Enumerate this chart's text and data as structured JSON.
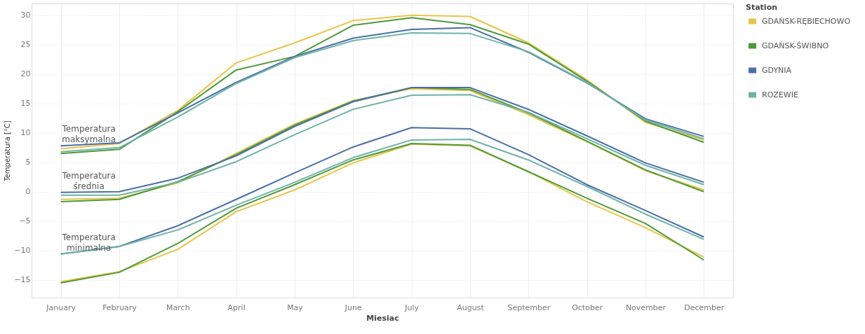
{
  "chart_data": {
    "type": "line",
    "xlabel": "Miesiac",
    "ylabel": "Temperatura [°C]",
    "legend_title": "Station",
    "categories": [
      "January",
      "February",
      "March",
      "April",
      "May",
      "June",
      "July",
      "August",
      "September",
      "October",
      "November",
      "December"
    ],
    "ylim": [
      -18,
      32
    ],
    "yticks": [
      -15,
      -10,
      -5,
      0,
      5,
      10,
      15,
      20,
      25,
      30
    ],
    "grid": true,
    "legend": "top right",
    "line_style": "solid",
    "annotations": [
      "Temperatura maksymalna",
      "Temperatura średnia",
      "Temperatura minimalna"
    ],
    "series": [
      {
        "name": "GDAŃSK-RĘBIECHOWO",
        "color": "#e8c547",
        "values": [
          7.3,
          8.2,
          13.8,
          21.9,
          25.3,
          29.1,
          30.0,
          29.8,
          25.3,
          19.0,
          11.8,
          8.8
        ]
      },
      {
        "name": "GDAŃSK-ŚWIBNO",
        "color": "#4e9a3a",
        "values": [
          6.5,
          7.2,
          13.6,
          20.7,
          23.0,
          28.3,
          29.6,
          28.4,
          25.1,
          18.8,
          12.0,
          8.4
        ]
      },
      {
        "name": "GDYNIA",
        "color": "#4a6fa5",
        "values": [
          7.8,
          8.3,
          13.4,
          18.6,
          23.0,
          26.1,
          27.6,
          27.9,
          23.7,
          18.5,
          12.4,
          9.4
        ]
      },
      {
        "name": "ROZEWIE",
        "color": "#6fb3a8",
        "values": [
          6.8,
          7.5,
          12.7,
          18.4,
          22.8,
          25.7,
          27.0,
          26.9,
          23.8,
          18.6,
          12.2,
          9.0
        ]
      },
      {
        "color": "#e8c547",
        "values": [
          -1.3,
          -1.1,
          1.5,
          6.5,
          11.5,
          15.5,
          17.5,
          17.2,
          13.1,
          8.5,
          3.6,
          0.3
        ]
      },
      {
        "color": "#4e9a3a",
        "values": [
          -1.7,
          -1.3,
          1.7,
          6.3,
          11.3,
          15.4,
          17.7,
          17.4,
          13.4,
          8.6,
          3.7,
          0.0
        ]
      },
      {
        "color": "#4a6fa5",
        "values": [
          -0.1,
          0.0,
          2.3,
          6.1,
          11.1,
          15.3,
          17.7,
          17.7,
          14.0,
          9.5,
          4.9,
          1.6
        ]
      },
      {
        "color": "#6fb3a8",
        "values": [
          -0.6,
          -0.6,
          1.6,
          5.1,
          9.7,
          14.0,
          16.4,
          16.5,
          13.5,
          9.0,
          4.5,
          1.2
        ]
      },
      {
        "color": "#e8c547",
        "values": [
          -15.3,
          -13.6,
          -9.8,
          -3.4,
          0.3,
          4.9,
          8.1,
          7.8,
          3.4,
          -1.7,
          -6.1,
          -11.1
        ]
      },
      {
        "color": "#4e9a3a",
        "values": [
          -15.5,
          -13.7,
          -8.8,
          -2.8,
          1.2,
          5.4,
          8.2,
          7.9,
          3.4,
          -1.1,
          -5.4,
          -11.6
        ]
      },
      {
        "color": "#4a6fa5",
        "values": [
          -10.6,
          -9.3,
          -5.8,
          -1.3,
          3.2,
          7.6,
          10.9,
          10.7,
          6.3,
          1.2,
          -3.2,
          -7.7
        ]
      },
      {
        "color": "#6fb3a8",
        "values": [
          -10.6,
          -9.3,
          -6.5,
          -2.3,
          1.6,
          5.8,
          8.8,
          8.9,
          5.4,
          0.9,
          -3.8,
          -8.1
        ]
      }
    ]
  }
}
